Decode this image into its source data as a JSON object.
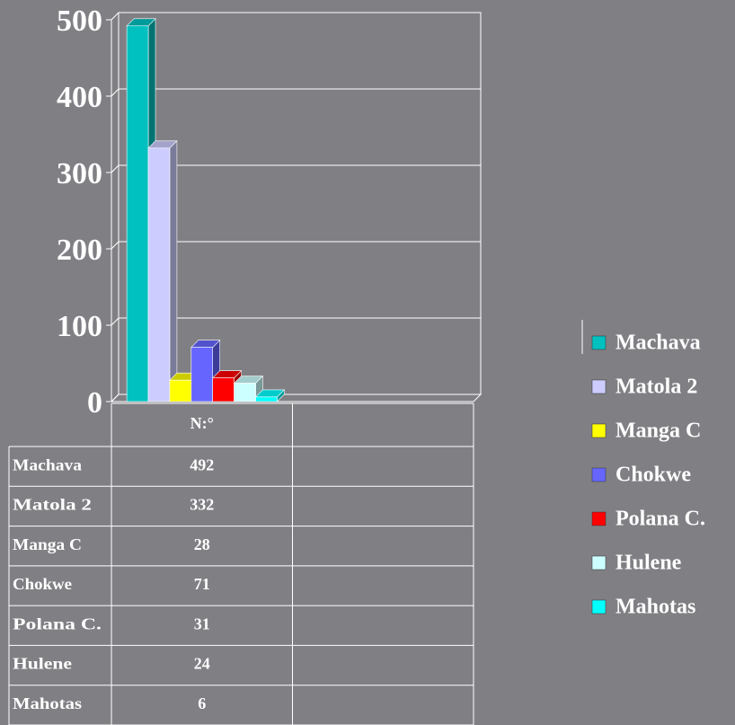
{
  "chart_data": {
    "type": "bar3d",
    "categories": [
      "N:°",
      null
    ],
    "series": [
      {
        "name": "Machava",
        "color": "#00c0c0",
        "values": [
          492,
          null
        ]
      },
      {
        "name": "Matola 2",
        "color": "#ccccff",
        "values": [
          332,
          null
        ]
      },
      {
        "name": "Manga C",
        "color": "#ffff00",
        "values": [
          28,
          null
        ]
      },
      {
        "name": "Chokwe",
        "color": "#6666ff",
        "values": [
          71,
          null
        ]
      },
      {
        "name": "Polana C.",
        "color": "#ff0000",
        "values": [
          31,
          null
        ]
      },
      {
        "name": "Hulene",
        "color": "#ccffff",
        "values": [
          24,
          null
        ]
      },
      {
        "name": "Mahotas",
        "color": "#00ffff",
        "values": [
          6,
          null
        ]
      }
    ],
    "ylim": [
      0,
      500
    ],
    "yticks": [
      0,
      100,
      200,
      300,
      400,
      500
    ],
    "grid": true,
    "legend": "right",
    "data_table": true
  }
}
